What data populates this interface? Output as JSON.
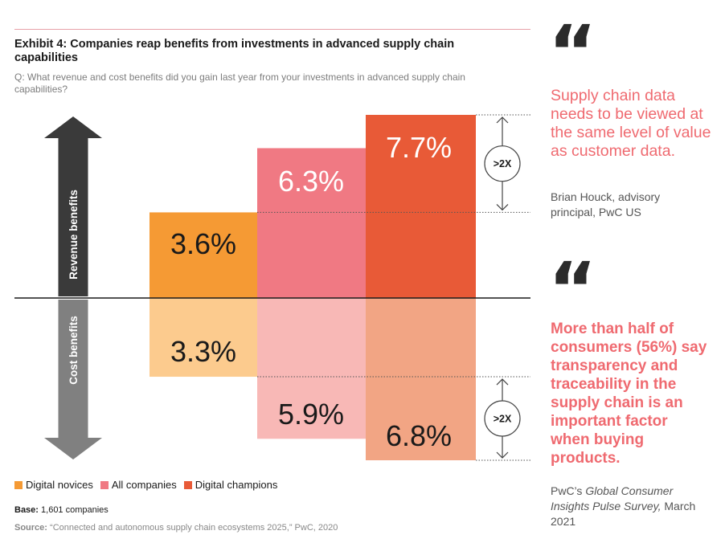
{
  "header": {
    "title": "Exhibit 4: Companies reap benefits from investments in advanced supply chain capabilities",
    "question": "Q: What revenue and cost benefits did you gain last year from your investments in advanced supply chain capabilities?"
  },
  "colors": {
    "novices_revenue": "#f59a34",
    "all_revenue": "#f07983",
    "champions_revenue": "#e85a37",
    "novices_cost": "#fccb8e",
    "all_cost": "#f8b8b6",
    "champions_cost": "#f2a584",
    "revenue_arrow": "#3a3a3a",
    "cost_arrow": "#808080",
    "accent": "#ef6a70"
  },
  "chart_data": {
    "type": "bar",
    "categories": [
      "Digital novices",
      "All companies",
      "Digital champions"
    ],
    "series": [
      {
        "name": "Revenue benefits",
        "values": [
          3.6,
          6.3,
          7.7
        ],
        "labels": [
          "3.6%",
          "6.3%",
          "7.7%"
        ]
      },
      {
        "name": "Cost benefits",
        "values": [
          3.3,
          5.9,
          6.8
        ],
        "labels": [
          "3.3%",
          "5.9%",
          "6.8%"
        ]
      }
    ],
    "axis_labels": {
      "revenue": "Revenue benefits",
      "cost": "Cost benefits"
    },
    "annotations": [
      "&gt;2X",
      "&gt;2X"
    ],
    "legend": [
      "Digital novices",
      "All companies",
      "Digital champions"
    ],
    "legend_position": "bottom-left",
    "grid": false
  },
  "legend": {
    "items": [
      {
        "label": "Digital novices"
      },
      {
        "label": "All companies"
      },
      {
        "label": "Digital champions"
      }
    ]
  },
  "footer": {
    "base_label": "Base:",
    "base_text": " 1,601 companies",
    "source_label": "Source:",
    "source_text": " “Connected and autonomous supply chain ecosystems 2025,” PwC, 2020"
  },
  "sidebar": {
    "quote1": {
      "text": "Supply chain data needs to be viewed at the same level of value as customer data.",
      "attribution": "Brian Houck, advisory principal, PwC US"
    },
    "quote2": {
      "text": "More than half of consumers (56%) say transparency and traceability in the supply chain is an important factor when buying products.",
      "attribution_prefix": "PwC’s ",
      "attribution_title": "Global Consumer Insights Pulse Survey,",
      "attribution_suffix": " March 2021"
    }
  }
}
